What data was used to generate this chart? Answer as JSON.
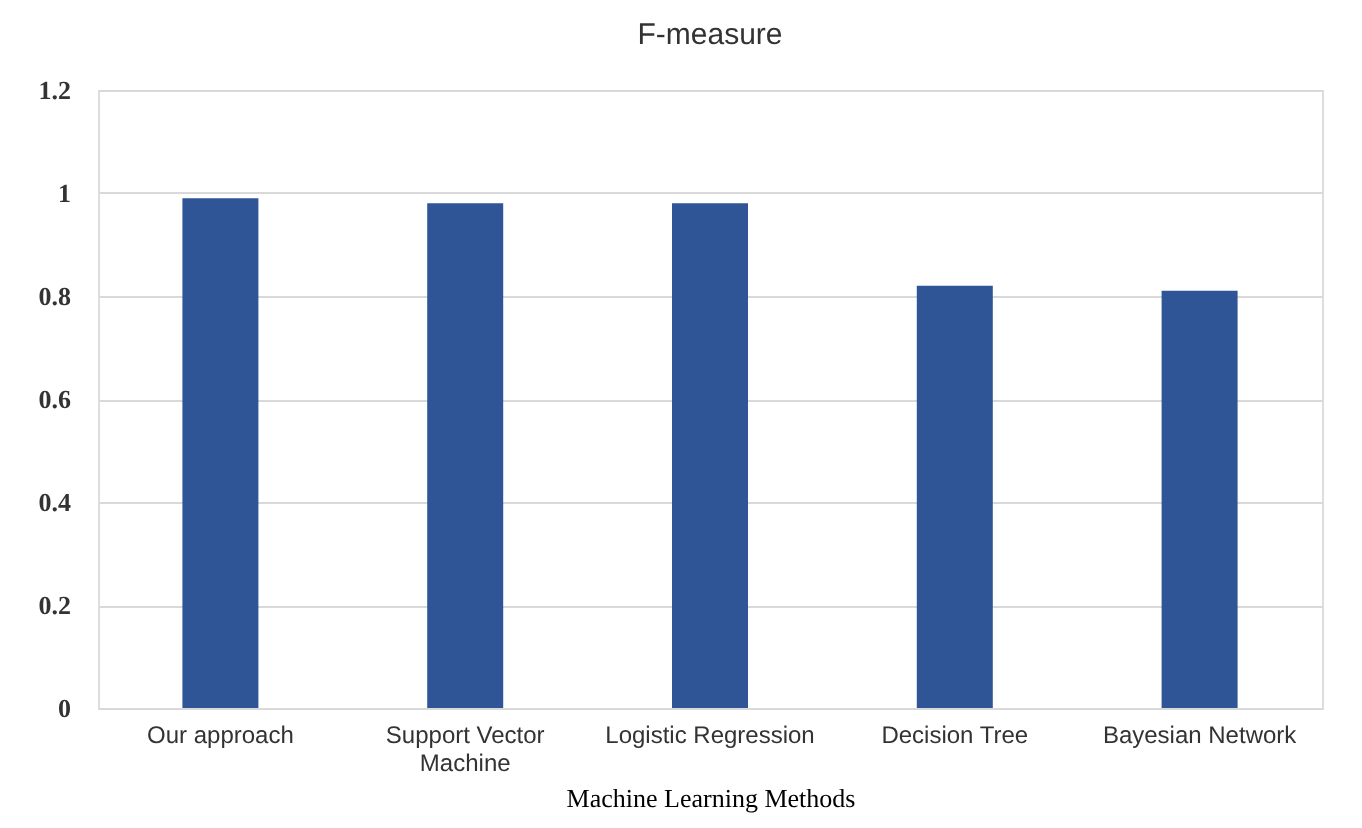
{
  "chart_data": {
    "type": "bar",
    "title": "F-measure",
    "xlabel": "Machine Learning Methods",
    "categories": [
      "Our approach",
      "Support Vector Machine",
      "Logistic Regression",
      "Decision Tree",
      "Bayesian Network"
    ],
    "values": [
      0.99,
      0.98,
      0.98,
      0.82,
      0.81
    ],
    "color": "#2f5597",
    "ylim": [
      0,
      1.2
    ],
    "yticks": [
      0,
      0.2,
      0.4,
      0.6,
      0.8,
      1,
      1.2
    ],
    "grid": "y"
  }
}
